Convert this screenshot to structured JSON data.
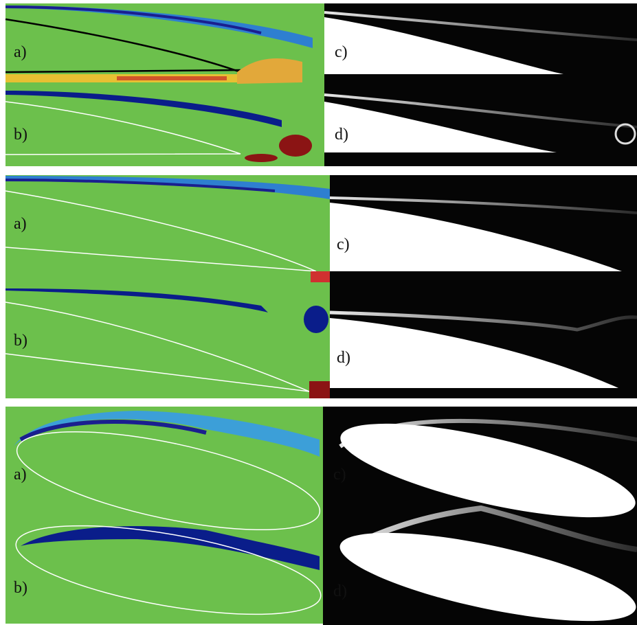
{
  "panels": [
    {
      "labels": [
        "a)",
        "b)",
        "c)",
        "d)"
      ]
    },
    {
      "labels": [
        "a)",
        "b)",
        "c)",
        "d)"
      ]
    },
    {
      "labels": [
        "a)",
        "b)",
        "c)",
        "d)"
      ]
    }
  ]
}
